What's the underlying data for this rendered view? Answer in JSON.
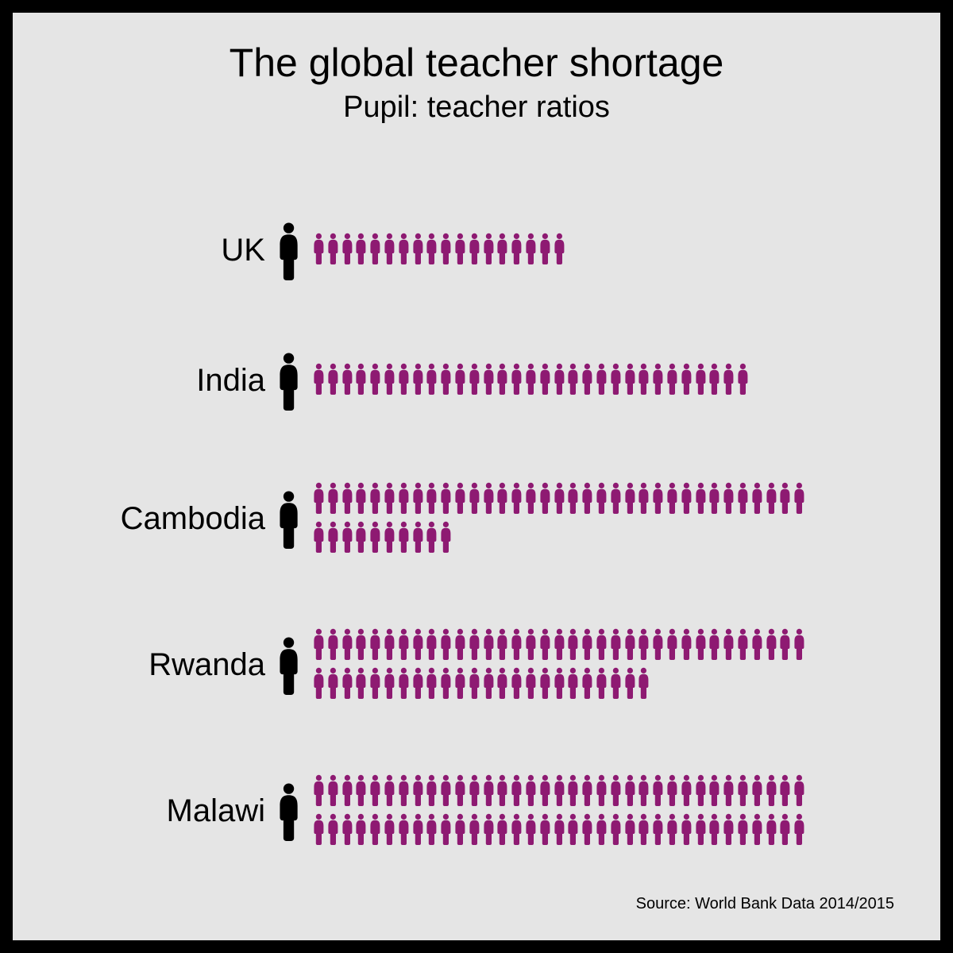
{
  "title": "The global teacher shortage",
  "subtitle": "Pupil: teacher ratios",
  "source": "Source: World Bank Data 2014/2015",
  "colors": {
    "background": "#e5e5e5",
    "border": "#000000",
    "teacher": "#000000",
    "pupil": "#8e1a72",
    "text": "#000000"
  },
  "typography": {
    "title_fontsize": 50,
    "subtitle_fontsize": 38,
    "label_fontsize": 40,
    "source_fontsize": 20,
    "font_family": "Segoe UI, Helvetica Neue, Arial, sans-serif"
  },
  "layout": {
    "pupils_per_line": 35,
    "teacher_icon_height": 74,
    "pupil_icon_height": 40,
    "pupil_icon_gap": 1
  },
  "chart": {
    "type": "pictogram",
    "rows": [
      {
        "label": "UK",
        "teachers": 1,
        "pupils": 18
      },
      {
        "label": "India",
        "teachers": 1,
        "pupils": 31
      },
      {
        "label": "Cambodia",
        "teachers": 1,
        "pupils": 45
      },
      {
        "label": "Rwanda",
        "teachers": 1,
        "pupils": 59
      },
      {
        "label": "Malawi",
        "teachers": 1,
        "pupils": 70
      }
    ]
  }
}
